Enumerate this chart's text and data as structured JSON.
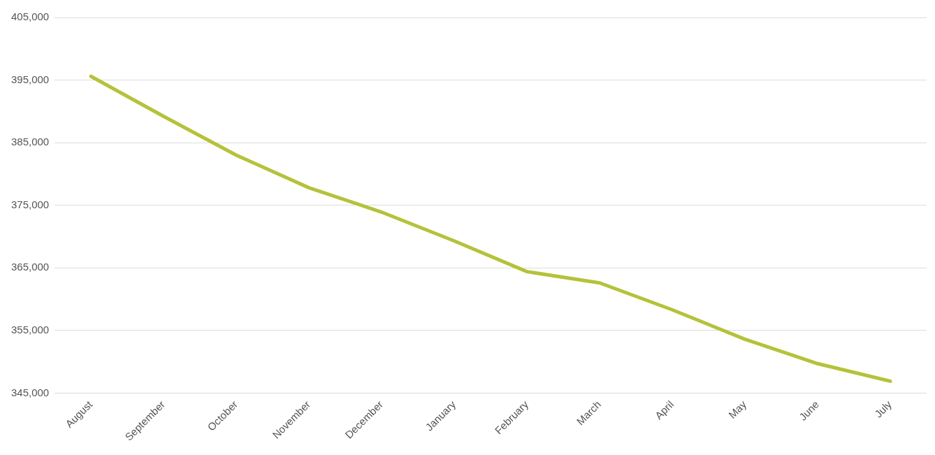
{
  "chart_data": {
    "type": "line",
    "categories": [
      "August",
      "September",
      "October",
      "November",
      "December",
      "January",
      "February",
      "March",
      "April",
      "May",
      "June",
      "July"
    ],
    "series": [
      {
        "color": "#b5c23a",
        "values": [
          395600,
          389200,
          383000,
          377800,
          373900,
          369300,
          364400,
          362600,
          358300,
          353600,
          349700,
          346900
        ]
      }
    ],
    "ylim": [
      345000,
      405000
    ],
    "yticks": [
      {
        "value": 345000,
        "label": "345,000"
      },
      {
        "value": 355000,
        "label": "355,000"
      },
      {
        "value": 365000,
        "label": "365,000"
      },
      {
        "value": 375000,
        "label": "375,000"
      },
      {
        "value": 385000,
        "label": "385,000"
      },
      {
        "value": 395000,
        "label": "395,000"
      },
      {
        "value": 405000,
        "label": "405,000"
      }
    ],
    "grid": "y",
    "marker": "none",
    "line_style": "solid"
  }
}
